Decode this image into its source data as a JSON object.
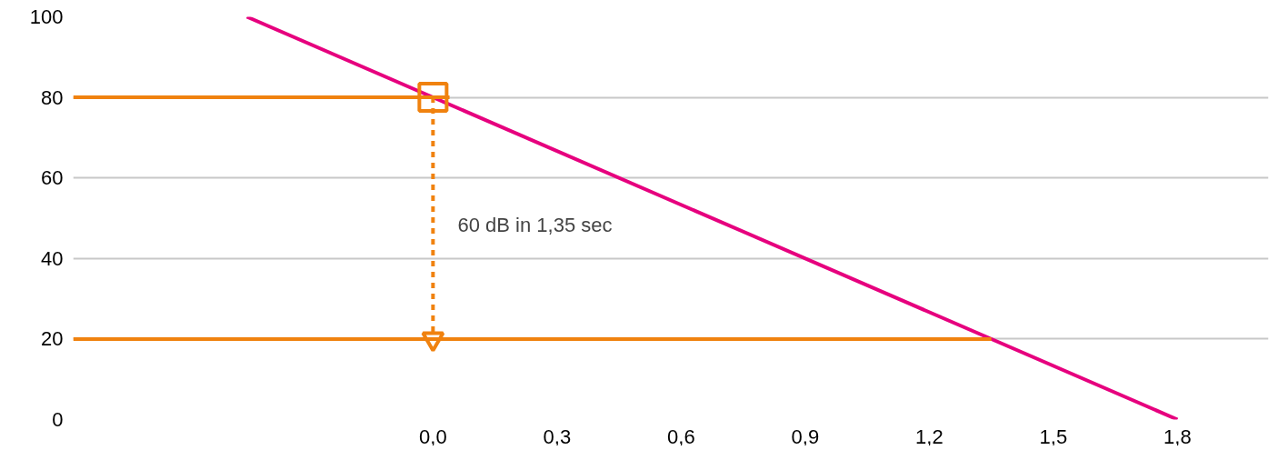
{
  "chart_data": {
    "type": "line",
    "xlim": [
      -0.87,
      2.02
    ],
    "ylim": [
      0,
      100
    ],
    "xticks": [
      {
        "value": 0,
        "label": "0,0"
      },
      {
        "value": 0.3,
        "label": "0,3"
      },
      {
        "value": 0.6,
        "label": "0,6"
      },
      {
        "value": 0.9,
        "label": "0,9"
      },
      {
        "value": 1.2,
        "label": "1,2"
      },
      {
        "value": 1.5,
        "label": "1,5"
      },
      {
        "value": 1.8,
        "label": "1,8"
      }
    ],
    "yticks": [
      0,
      20,
      40,
      60,
      80,
      100
    ],
    "grid": "y",
    "series": [
      {
        "color": "#e6007e",
        "x": [
          -0.45,
          1.8
        ],
        "values": [
          100,
          0
        ]
      },
      {
        "color": "#f0820f",
        "x": [
          -0.87,
          0.04
        ],
        "values": [
          80,
          80
        ]
      },
      {
        "color": "#f0820f",
        "x": [
          -0.87,
          1.35
        ],
        "values": [
          20,
          20
        ]
      },
      {
        "color": "#f0820f",
        "line_style": "dashed",
        "x": [
          0,
          0
        ],
        "values": [
          80,
          20
        ]
      },
      {
        "type": "scatter",
        "marker": "square",
        "color": "#f0820f",
        "x": [
          0
        ],
        "values": [
          80
        ]
      }
    ],
    "annotations": [
      "60 dB in  1,35 sec"
    ]
  }
}
